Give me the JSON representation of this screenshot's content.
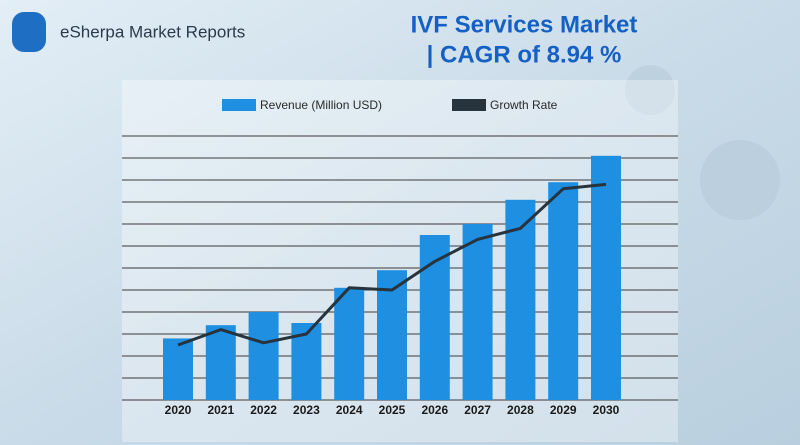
{
  "chart_data": {
    "type": "bar",
    "brand": "eSherpa Market Reports",
    "title": [
      "IVF Services Market",
      "| CAGR of 8.94 %"
    ],
    "categories": [
      "2020",
      "2021",
      "2022",
      "2023",
      "2024",
      "2025",
      "2026",
      "2027",
      "2028",
      "2029",
      "2030"
    ],
    "series": [
      {
        "name": "Revenue (Million USD)",
        "type": "bar",
        "color": "#1e8fe1",
        "values": [
          2.8,
          3.4,
          4.0,
          3.5,
          5.1,
          5.9,
          7.5,
          8.0,
          9.1,
          9.9,
          11.1
        ]
      },
      {
        "name": "Growth Rate",
        "type": "line",
        "color": "#27333d",
        "values": [
          2.5,
          3.2,
          2.6,
          3.0,
          5.1,
          5.0,
          6.3,
          7.3,
          7.8,
          9.6,
          9.8
        ]
      }
    ],
    "ylim": [
      0,
      12
    ],
    "yticks": [
      1,
      2,
      3,
      4,
      5,
      6,
      7,
      8,
      9,
      10,
      11,
      12
    ],
    "grid": true
  }
}
